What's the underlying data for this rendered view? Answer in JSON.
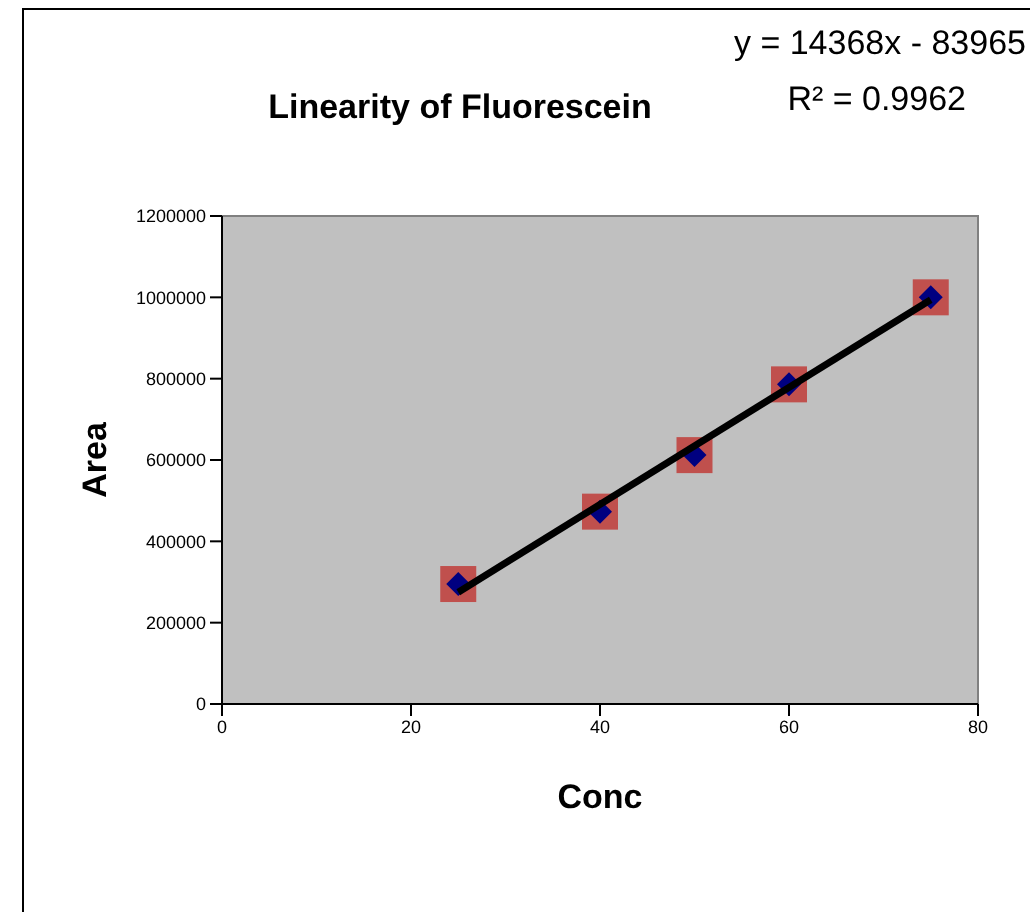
{
  "chart_data": {
    "type": "scatter",
    "title": "Linearity of Fluorescein",
    "xlabel": "Conc",
    "ylabel": "Area",
    "annotations": [
      "y = 14368x - 83965",
      "R² = 0.9962"
    ],
    "x": [
      25,
      40,
      50,
      60,
      75
    ],
    "series": [
      {
        "color": "#c0504d",
        "marker": "square",
        "values": [
          295000,
          473000,
          612000,
          786000,
          1000000
        ]
      },
      {
        "color": "#000080",
        "marker": "diamond",
        "values": [
          295000,
          473000,
          612000,
          786000,
          1000000
        ]
      },
      {
        "type": "line",
        "color": "#000000",
        "x": [
          25,
          75
        ],
        "values": [
          275000,
          994000
        ],
        "marker": "none"
      }
    ],
    "xlim": [
      0,
      80
    ],
    "xticks": [
      0,
      20,
      40,
      60,
      80
    ],
    "ylim": [
      0,
      1200000
    ],
    "yticks": [
      0,
      200000,
      400000,
      600000,
      800000,
      1000000,
      1200000
    ],
    "grid": false,
    "legend": false
  }
}
